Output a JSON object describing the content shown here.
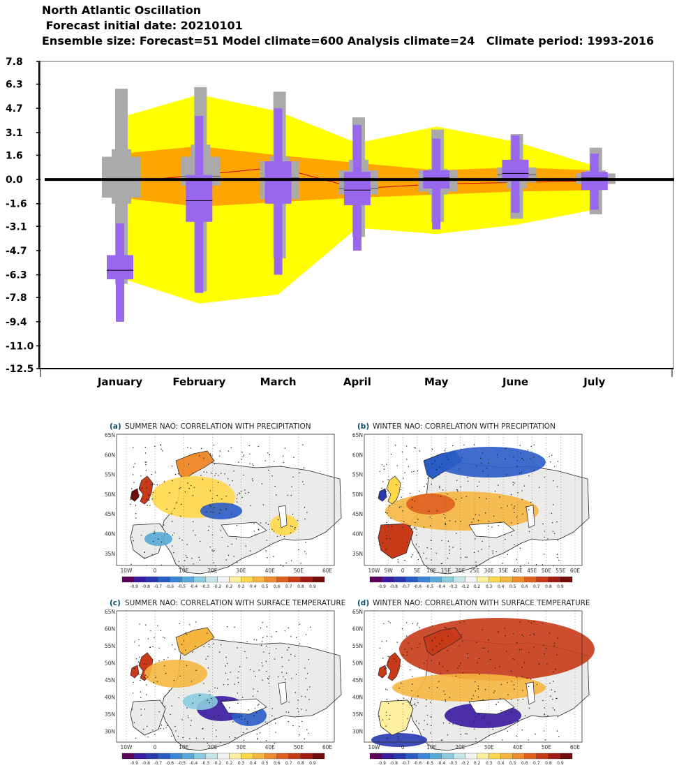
{
  "header": {
    "line1": "North Atlantic Oscillation",
    "line2": " Forecast initial date: 20210101",
    "line3": "Ensemble size: Forecast=51 Model climate=600 Analysis climate=24   Climate period: 1993-2016"
  },
  "chart_data": {
    "type": "box",
    "categories": [
      "January",
      "February",
      "March",
      "April",
      "May",
      "June",
      "July"
    ],
    "yticks": [
      7.8,
      6.3,
      4.7,
      3.1,
      1.6,
      0.0,
      -1.6,
      -3.1,
      -4.7,
      -6.3,
      -7.8,
      -9.4,
      -11.0,
      -12.5
    ],
    "ytick_labels": [
      "7.8",
      "6.3",
      "4.7",
      "3.1",
      "1.6",
      "0.0",
      "-1.6",
      "-3.1",
      "-4.7",
      "-6.3",
      "-7.8",
      "-9.4",
      "-11.0",
      "-12.5"
    ],
    "ylim": [
      -12.5,
      7.8
    ],
    "grid": false,
    "zero_line": true,
    "colors": {
      "climate_extreme": "#ffff00",
      "climate_inner": "#ffa500",
      "model_climate_box": "#aaaaaa",
      "forecast_box": "#9966ee",
      "median_line": "#000000",
      "climate_median_line": "#cc0000",
      "zero_line": "#000000"
    },
    "climate_outer_band": {
      "upper": [
        4.1,
        5.6,
        4.5,
        2.4,
        3.5,
        2.5,
        0.9
      ],
      "lower": [
        -6.5,
        -8.2,
        -7.6,
        -3.2,
        -3.6,
        -3.0,
        -2.0
      ]
    },
    "climate_inner_band": {
      "upper": [
        1.7,
        2.2,
        1.6,
        1.1,
        0.6,
        0.8,
        0.6
      ],
      "lower": [
        -1.2,
        -1.8,
        -1.5,
        -1.2,
        -1.0,
        -0.8,
        -0.7
      ]
    },
    "climate_median": [
      -0.2,
      0.3,
      0.8,
      -0.6,
      -0.3,
      -0.2,
      -0.1
    ],
    "model_climate": [
      {
        "min": -6.9,
        "p10": -1.6,
        "p33": -1.2,
        "median": 0.0,
        "p66": 1.5,
        "p90": 2.0,
        "max": 6.0
      },
      {
        "min": -7.4,
        "p10": -1.8,
        "p33": -0.4,
        "median": 0.2,
        "p66": 1.5,
        "p90": 2.3,
        "max": 6.1
      },
      {
        "min": -5.2,
        "p10": -1.6,
        "p33": -1.3,
        "median": 0.1,
        "p66": 1.2,
        "p90": 1.5,
        "max": 5.8
      },
      {
        "min": -3.8,
        "p10": -1.2,
        "p33": -1.0,
        "median": -0.6,
        "p66": 0.6,
        "p90": 1.3,
        "max": 4.1
      },
      {
        "min": -2.8,
        "p10": -1.0,
        "p33": -0.8,
        "median": 0.0,
        "p66": 0.6,
        "p90": 0.7,
        "max": 3.3
      },
      {
        "min": -2.6,
        "p10": -0.6,
        "p33": -0.2,
        "median": 0.3,
        "p66": 0.8,
        "p90": 1.3,
        "max": 3.0
      },
      {
        "min": -2.3,
        "p10": -0.6,
        "p33": -0.3,
        "median": 0.0,
        "p66": 0.4,
        "p90": 0.6,
        "max": 2.1
      }
    ],
    "forecast": [
      {
        "min": -9.4,
        "p10": -6.6,
        "median": -6.0,
        "p90": -5.0,
        "max": -2.9
      },
      {
        "min": -7.5,
        "p10": -2.8,
        "median": -1.4,
        "p90": 0.3,
        "max": 4.2
      },
      {
        "min": -6.3,
        "p10": -1.6,
        "median": 0.0,
        "p90": 1.2,
        "max": 4.7
      },
      {
        "min": -4.7,
        "p10": -1.7,
        "median": -0.7,
        "p90": 0.5,
        "max": 3.6
      },
      {
        "min": -3.3,
        "p10": -0.6,
        "median": 0.1,
        "p90": 0.6,
        "max": 2.7
      },
      {
        "min": -2.2,
        "p10": -0.1,
        "median": 0.4,
        "p90": 1.3,
        "max": 2.9
      },
      {
        "min": -2.0,
        "p10": -0.7,
        "median": 0.1,
        "p90": 0.5,
        "max": 1.7
      }
    ]
  },
  "maps": [
    {
      "letter": "(a)",
      "title": "SUMMER NAO: CORRELATION WITH PRECIPITATION",
      "lat_labels": [
        "65N",
        "60N",
        "55N",
        "50N",
        "45N",
        "40N",
        "35N"
      ],
      "lon_labels": [
        "10W",
        "0",
        "10E",
        "20E",
        "30E",
        "40E",
        "50E",
        "60E"
      ],
      "colorbar": [
        "-0.9",
        "-0.8",
        "-0.7",
        "-0.6",
        "-0.5",
        "-0.4",
        "-0.3",
        "-0.2",
        "0.2",
        "0.3",
        "0.4",
        "0.5",
        "0.6",
        "0.7",
        "0.8",
        "0.9"
      ]
    },
    {
      "letter": "(b)",
      "title": "WINTER NAO: CORRELATION WITH PRECIPITATION",
      "lat_labels": [
        "65N",
        "60N",
        "55N",
        "50N",
        "45N",
        "40N",
        "35N"
      ],
      "lon_labels": [
        "10W",
        "5W",
        "0",
        "5E",
        "10E",
        "15E",
        "20E",
        "25E",
        "30E",
        "35E",
        "40E",
        "45E",
        "50E",
        "55E",
        "60E"
      ],
      "colorbar": [
        "-0.9",
        "-0.8",
        "-0.7",
        "-0.6",
        "-0.5",
        "-0.4",
        "-0.3",
        "-0.2",
        "0.2",
        "0.3",
        "0.4",
        "0.5",
        "0.6",
        "0.7",
        "0.8",
        "0.9"
      ]
    },
    {
      "letter": "(c)",
      "title": "SUMMER NAO: CORRELATION WITH SURFACE TEMPERATURE",
      "lat_labels": [
        "65N",
        "60N",
        "55N",
        "50N",
        "45N",
        "40N",
        "35N",
        "30N"
      ],
      "lon_labels": [
        "10W",
        "0",
        "10E",
        "20E",
        "30E",
        "40E",
        "50E",
        "60E"
      ],
      "colorbar": [
        "-0.9",
        "-0.8",
        "-0.7",
        "-0.6",
        "-0.5",
        "-0.4",
        "-0.3",
        "-0.2",
        "0.2",
        "0.3",
        "0.4",
        "0.5",
        "0.6",
        "0.7",
        "0.8",
        "0.9"
      ]
    },
    {
      "letter": "(d)",
      "title": "WINTER NAO: CORRELATION WITH SURFACE TEMPERATURE",
      "lat_labels": [
        "65N",
        "60N",
        "55N",
        "50N",
        "45N",
        "40N",
        "35N",
        "30N"
      ],
      "lon_labels": [
        "10W",
        "0",
        "10E",
        "20E",
        "30E",
        "40E",
        "50E",
        "60E"
      ],
      "colorbar": [
        "-0.9",
        "-0.8",
        "-0.7",
        "-0.6",
        "-0.5",
        "-0.4",
        "-0.3",
        "-0.2",
        "0.2",
        "0.3",
        "0.4",
        "0.5",
        "0.6",
        "0.7",
        "0.8",
        "0.9"
      ]
    }
  ]
}
